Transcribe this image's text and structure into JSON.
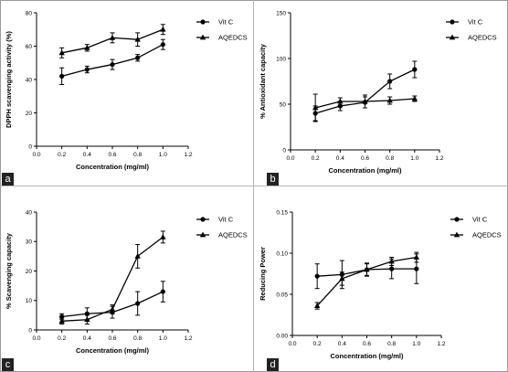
{
  "panels": [
    {
      "letter": "a",
      "chart_data": {
        "type": "line",
        "xlabel": "Concentration (mg/ml)",
        "ylabel": "DPPH scavenging activity (%)",
        "xlim": [
          0.0,
          1.2
        ],
        "ylim": [
          0,
          80
        ],
        "xticks": [
          "0.0",
          "0.2",
          "0.4",
          "0.6",
          "0.8",
          "1.0",
          "1.2"
        ],
        "yticks": [
          "0",
          "20",
          "40",
          "60",
          "80"
        ],
        "legend": "top-right",
        "x": [
          0.2,
          0.4,
          0.6,
          0.8,
          1.0
        ],
        "series": [
          {
            "name": "Vit C",
            "marker": "circle",
            "values": [
              42,
              46,
              49,
              53,
              61
            ],
            "errors": [
              5,
              2,
              3,
              2,
              3
            ]
          },
          {
            "name": "AQEDCS",
            "marker": "triangle",
            "values": [
              56,
              59,
              65,
              64,
              70
            ],
            "errors": [
              3,
              2,
              3,
              4,
              3
            ]
          }
        ]
      }
    },
    {
      "letter": "b",
      "chart_data": {
        "type": "line",
        "xlabel": "Concentration (mg/ml)",
        "ylabel": "% Antioxidant capacity",
        "xlim": [
          0.0,
          1.2
        ],
        "ylim": [
          0,
          150
        ],
        "xticks": [
          "0.0",
          "0.2",
          "0.4",
          "0.6",
          "0.8",
          "1.0",
          "1.2"
        ],
        "yticks": [
          "0",
          "50",
          "100",
          "150"
        ],
        "legend": "top-right",
        "x": [
          0.2,
          0.4,
          0.6,
          0.8,
          1.0
        ],
        "series": [
          {
            "name": "Vit C",
            "marker": "circle",
            "values": [
              40,
              48,
              52,
              75,
              88
            ],
            "errors": [
              8,
              5,
              6,
              8,
              9
            ]
          },
          {
            "name": "AQEDCS",
            "marker": "triangle",
            "values": [
              46,
              53,
              53,
              54,
              56
            ],
            "errors": [
              15,
              4,
              7,
              4,
              3
            ]
          }
        ]
      }
    },
    {
      "letter": "c",
      "chart_data": {
        "type": "line",
        "xlabel": "Concentration (mg/ml)",
        "ylabel": "% Scavenging capacity",
        "xlim": [
          0.0,
          1.2
        ],
        "ylim": [
          0,
          40
        ],
        "xticks": [
          "0.0",
          "0.2",
          "0.4",
          "0.6",
          "0.8",
          "1.0",
          "1.2"
        ],
        "yticks": [
          "0",
          "10",
          "20",
          "30",
          "40"
        ],
        "legend": "top-right",
        "x": [
          0.2,
          0.4,
          0.6,
          0.8,
          1.0
        ],
        "series": [
          {
            "name": "Vit C",
            "marker": "circle",
            "values": [
              4.5,
              5.5,
              6,
              9,
              13
            ],
            "errors": [
              1,
              2,
              2,
              4,
              3.5
            ]
          },
          {
            "name": "AQEDCS",
            "marker": "triangle",
            "values": [
              3,
              3.5,
              7,
              25,
              31.5
            ],
            "errors": [
              1,
              1.5,
              1.5,
              4,
              2
            ]
          }
        ]
      }
    },
    {
      "letter": "d",
      "chart_data": {
        "type": "line",
        "xlabel": "Concentration (mg/ml)",
        "ylabel": "Reducing Power",
        "xlim": [
          0.0,
          1.2
        ],
        "ylim": [
          0.0,
          0.15
        ],
        "xticks": [
          "0.0",
          "0.2",
          "0.4",
          "0.6",
          "0.8",
          "1.0",
          "1.2"
        ],
        "yticks": [
          "0.00",
          "0.05",
          "0.10",
          "0.15"
        ],
        "legend": "top-right",
        "x": [
          0.2,
          0.4,
          0.6,
          0.8,
          1.0
        ],
        "series": [
          {
            "name": "Vit C",
            "marker": "circle",
            "values": [
              0.072,
              0.074,
              0.08,
              0.081,
              0.081
            ],
            "errors": [
              0.015,
              0.017,
              0.008,
              0.012,
              0.018
            ]
          },
          {
            "name": "AQEDCS",
            "marker": "triangle",
            "values": [
              0.036,
              0.069,
              0.08,
              0.09,
              0.095
            ],
            "errors": [
              0.004,
              0.008,
              0.007,
              0.005,
              0.006
            ]
          }
        ]
      }
    }
  ]
}
